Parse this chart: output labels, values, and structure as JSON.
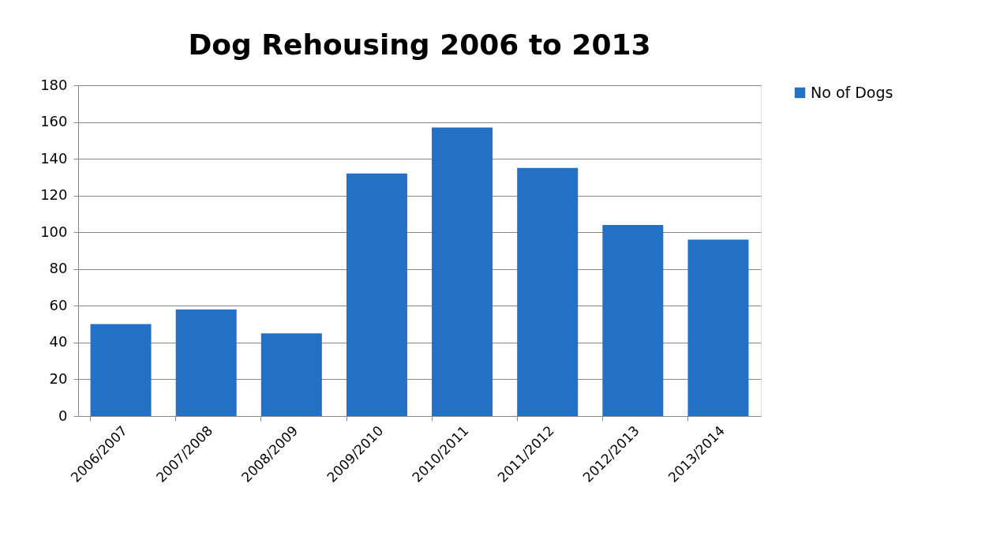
{
  "chart_data": {
    "type": "bar",
    "title": "Dog Rehousing 2006 to 2013",
    "categories": [
      "2006/2007",
      "2007/2008",
      "2008/2009",
      "2009/2010",
      "2010/2011",
      "2011/2012",
      "2012/2013",
      "2013/2014"
    ],
    "series": [
      {
        "name": "No of Dogs",
        "color": "#2371c6",
        "values": [
          50,
          58,
          45,
          132,
          157,
          135,
          104,
          96
        ]
      }
    ],
    "ylim": [
      0,
      180
    ],
    "yticks": [
      0,
      20,
      40,
      60,
      80,
      100,
      120,
      140,
      160,
      180
    ],
    "grid": "y",
    "legend": "right"
  }
}
